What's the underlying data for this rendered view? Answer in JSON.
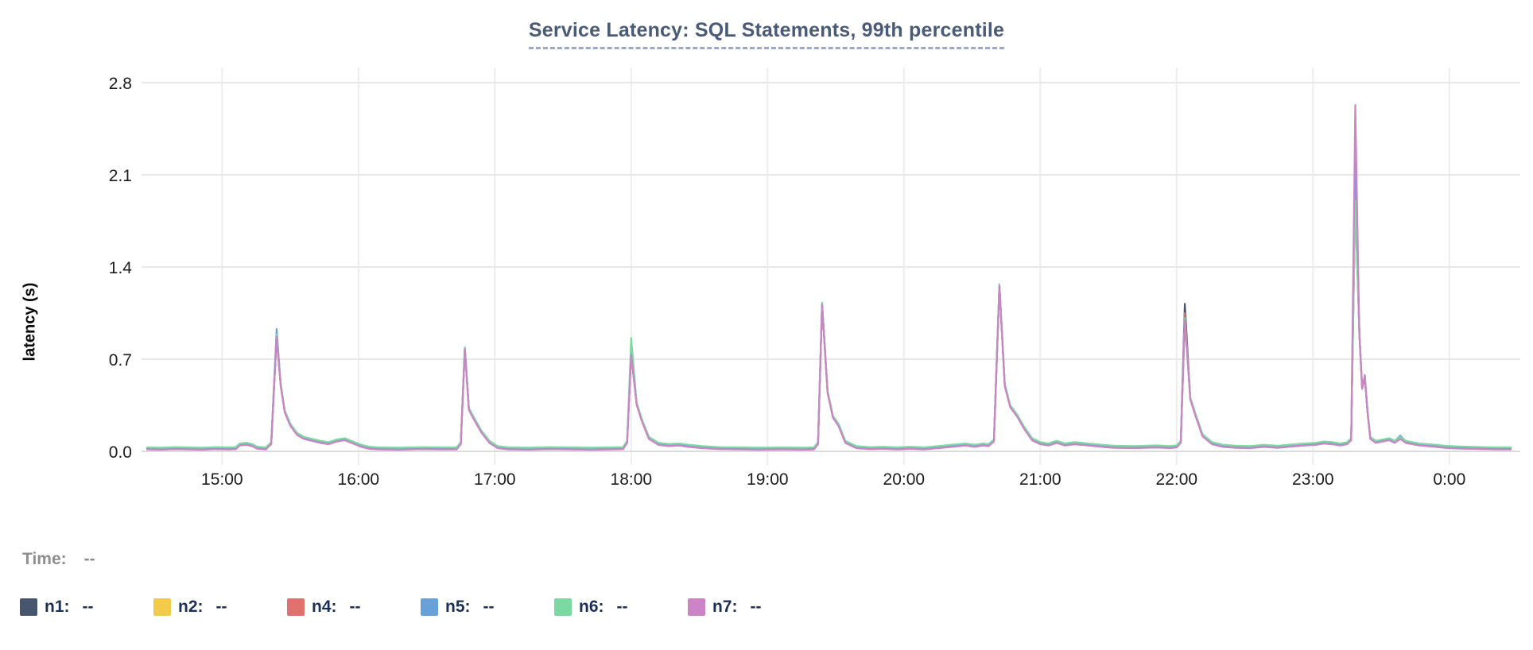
{
  "chart": {
    "title": "Service Latency: SQL Statements, 99th percentile",
    "ylabel": "latency (s)"
  },
  "legend": {
    "time_label": "Time:",
    "time_value": "--",
    "item_value": "--"
  },
  "colors": {
    "title": "#4a5b78",
    "title_underline": "#9aa9c8",
    "grid_horizontal": "#e8e8e8",
    "grid_vertical": "#ededed",
    "axis_zero_line": "#dcdcdc",
    "tick_text": "#1c1c1c",
    "legend_text": "#1c3055",
    "time_text": "#8e8e8e"
  },
  "chart_data": {
    "type": "line",
    "title": "Service Latency: SQL Statements, 99th percentile",
    "xlabel": "",
    "ylabel": "latency (s)",
    "xlim": [
      14.45,
      24.45
    ],
    "ylim": [
      0,
      2.8
    ],
    "grid": true,
    "legend_position": "bottom",
    "yticks": [
      {
        "v": 0,
        "label": "0.0"
      },
      {
        "v": 0.7,
        "label": "0.7"
      },
      {
        "v": 1.4,
        "label": "1.4"
      },
      {
        "v": 2.1,
        "label": "2.1"
      },
      {
        "v": 2.8,
        "label": "2.8"
      }
    ],
    "xticks": [
      {
        "t": 15,
        "label": "15:00"
      },
      {
        "t": 16,
        "label": "16:00"
      },
      {
        "t": 17,
        "label": "17:00"
      },
      {
        "t": 18,
        "label": "18:00"
      },
      {
        "t": 19,
        "label": "19:00"
      },
      {
        "t": 20,
        "label": "20:00"
      },
      {
        "t": 21,
        "label": "21:00"
      },
      {
        "t": 22,
        "label": "22:00"
      },
      {
        "t": 23,
        "label": "23:00"
      },
      {
        "t": 24,
        "label": "0:00"
      }
    ],
    "points": [
      [
        14.45,
        0.02
      ],
      [
        14.55,
        0.018
      ],
      [
        14.65,
        0.022
      ],
      [
        14.75,
        0.02
      ],
      [
        14.85,
        0.018
      ],
      [
        14.95,
        0.022
      ],
      [
        15.05,
        0.02
      ],
      [
        15.1,
        0.022
      ],
      [
        15.13,
        0.05
      ],
      [
        15.18,
        0.055
      ],
      [
        15.22,
        0.045
      ],
      [
        15.26,
        0.025
      ],
      [
        15.32,
        0.02
      ],
      [
        15.36,
        0.06
      ],
      [
        15.4,
        0.88
      ],
      [
        15.43,
        0.5
      ],
      [
        15.46,
        0.3
      ],
      [
        15.5,
        0.2
      ],
      [
        15.55,
        0.13
      ],
      [
        15.6,
        0.1
      ],
      [
        15.66,
        0.085
      ],
      [
        15.72,
        0.07
      ],
      [
        15.78,
        0.06
      ],
      [
        15.84,
        0.08
      ],
      [
        15.9,
        0.09
      ],
      [
        15.96,
        0.065
      ],
      [
        16.02,
        0.04
      ],
      [
        16.08,
        0.025
      ],
      [
        16.15,
        0.02
      ],
      [
        16.3,
        0.018
      ],
      [
        16.45,
        0.022
      ],
      [
        16.6,
        0.02
      ],
      [
        16.72,
        0.02
      ],
      [
        16.75,
        0.06
      ],
      [
        16.78,
        0.78
      ],
      [
        16.81,
        0.32
      ],
      [
        16.84,
        0.26
      ],
      [
        16.9,
        0.15
      ],
      [
        16.96,
        0.07
      ],
      [
        17.02,
        0.03
      ],
      [
        17.1,
        0.02
      ],
      [
        17.25,
        0.018
      ],
      [
        17.4,
        0.022
      ],
      [
        17.55,
        0.02
      ],
      [
        17.7,
        0.018
      ],
      [
        17.85,
        0.02
      ],
      [
        17.94,
        0.022
      ],
      [
        17.97,
        0.07
      ],
      [
        18.0,
        0.74
      ],
      [
        18.04,
        0.36
      ],
      [
        18.08,
        0.23
      ],
      [
        18.13,
        0.1
      ],
      [
        18.2,
        0.055
      ],
      [
        18.28,
        0.045
      ],
      [
        18.35,
        0.05
      ],
      [
        18.42,
        0.04
      ],
      [
        18.52,
        0.03
      ],
      [
        18.65,
        0.022
      ],
      [
        18.8,
        0.02
      ],
      [
        18.95,
        0.018
      ],
      [
        19.1,
        0.02
      ],
      [
        19.25,
        0.018
      ],
      [
        19.34,
        0.02
      ],
      [
        19.37,
        0.06
      ],
      [
        19.4,
        1.12
      ],
      [
        19.44,
        0.45
      ],
      [
        19.48,
        0.26
      ],
      [
        19.52,
        0.2
      ],
      [
        19.57,
        0.07
      ],
      [
        19.65,
        0.03
      ],
      [
        19.75,
        0.022
      ],
      [
        19.85,
        0.025
      ],
      [
        19.95,
        0.02
      ],
      [
        20.05,
        0.025
      ],
      [
        20.15,
        0.02
      ],
      [
        20.25,
        0.03
      ],
      [
        20.35,
        0.04
      ],
      [
        20.45,
        0.05
      ],
      [
        20.52,
        0.04
      ],
      [
        20.58,
        0.05
      ],
      [
        20.62,
        0.045
      ],
      [
        20.66,
        0.08
      ],
      [
        20.7,
        1.26
      ],
      [
        20.74,
        0.5
      ],
      [
        20.78,
        0.34
      ],
      [
        20.83,
        0.27
      ],
      [
        20.88,
        0.18
      ],
      [
        20.94,
        0.09
      ],
      [
        21.0,
        0.06
      ],
      [
        21.06,
        0.05
      ],
      [
        21.12,
        0.07
      ],
      [
        21.18,
        0.05
      ],
      [
        21.25,
        0.06
      ],
      [
        21.35,
        0.05
      ],
      [
        21.45,
        0.04
      ],
      [
        21.55,
        0.032
      ],
      [
        21.7,
        0.03
      ],
      [
        21.85,
        0.035
      ],
      [
        21.95,
        0.03
      ],
      [
        22.0,
        0.035
      ],
      [
        22.03,
        0.07
      ],
      [
        22.06,
        1.0
      ],
      [
        22.1,
        0.4
      ],
      [
        22.14,
        0.27
      ],
      [
        22.19,
        0.12
      ],
      [
        22.26,
        0.06
      ],
      [
        22.34,
        0.04
      ],
      [
        22.44,
        0.032
      ],
      [
        22.54,
        0.03
      ],
      [
        22.64,
        0.04
      ],
      [
        22.74,
        0.032
      ],
      [
        22.84,
        0.042
      ],
      [
        22.94,
        0.05
      ],
      [
        23.02,
        0.055
      ],
      [
        23.08,
        0.065
      ],
      [
        23.14,
        0.06
      ],
      [
        23.2,
        0.05
      ],
      [
        23.25,
        0.06
      ],
      [
        23.28,
        0.09
      ],
      [
        23.31,
        2.0
      ],
      [
        23.34,
        0.9
      ],
      [
        23.36,
        0.48
      ],
      [
        23.38,
        0.56
      ],
      [
        23.4,
        0.3
      ],
      [
        23.42,
        0.1
      ],
      [
        23.46,
        0.07
      ],
      [
        23.51,
        0.08
      ],
      [
        23.56,
        0.09
      ],
      [
        23.6,
        0.07
      ],
      [
        23.64,
        0.1
      ],
      [
        23.68,
        0.07
      ],
      [
        23.73,
        0.06
      ],
      [
        23.78,
        0.05
      ],
      [
        23.84,
        0.045
      ],
      [
        23.9,
        0.04
      ],
      [
        23.97,
        0.032
      ],
      [
        24.05,
        0.028
      ],
      [
        24.15,
        0.025
      ],
      [
        24.25,
        0.022
      ],
      [
        24.35,
        0.02
      ],
      [
        24.45,
        0.02
      ]
    ],
    "series": [
      {
        "name": "n1",
        "color": "#47566e",
        "offset": 0,
        "overrides": [
          [
            15.4,
            0.86
          ],
          [
            22.06,
            1.12
          ],
          [
            23.31,
            1.92
          ]
        ]
      },
      {
        "name": "n2",
        "color": "#f2cb4b",
        "offset": 0.004,
        "overrides": [
          [
            23.31,
            1.95
          ]
        ]
      },
      {
        "name": "n4",
        "color": "#e0716e",
        "offset": -0.004,
        "overrides": [
          [
            22.06,
            1.05
          ],
          [
            23.31,
            1.98
          ]
        ]
      },
      {
        "name": "n5",
        "color": "#68a1d8",
        "offset": 0.007,
        "overrides": [
          [
            15.4,
            0.93
          ],
          [
            23.31,
            2.17
          ],
          [
            23.64,
            0.12
          ]
        ]
      },
      {
        "name": "n6",
        "color": "#7cd9a2",
        "offset": 0.01,
        "overrides": [
          [
            18.0,
            0.86
          ],
          [
            23.31,
            1.9
          ]
        ]
      },
      {
        "name": "n7",
        "color": "#cb84c5",
        "offset": -0.006,
        "overrides": [
          [
            23.31,
            2.63
          ],
          [
            23.38,
            0.58
          ]
        ]
      }
    ]
  }
}
